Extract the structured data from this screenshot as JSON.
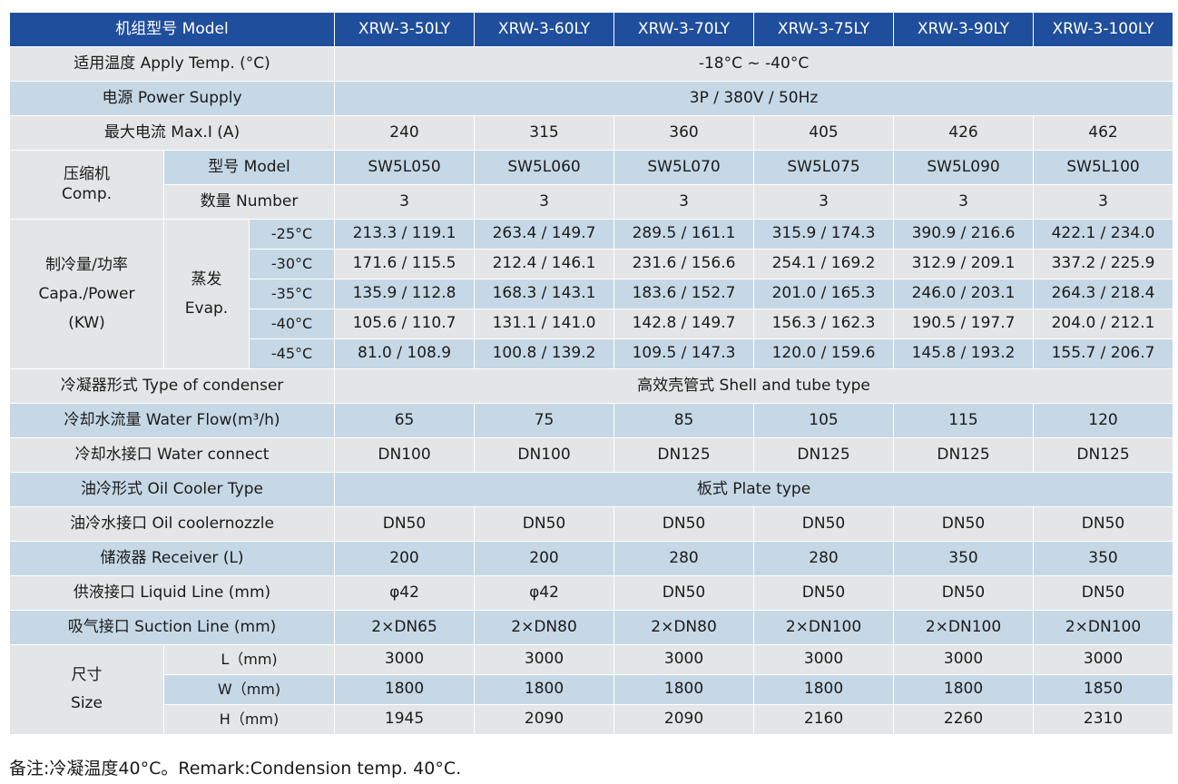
{
  "header": {
    "label": "机组型号 Model",
    "models": [
      "XRW-3-50LY",
      "XRW-3-60LY",
      "XRW-3-70LY",
      "XRW-3-75LY",
      "XRW-3-90LY",
      "XRW-3-100LY"
    ]
  },
  "apply_temp": {
    "label": "适用温度 Apply Temp. (°C)",
    "value": "-18°C ~ -40°C"
  },
  "power_supply": {
    "label": "电源 Power Supply",
    "value": "3P / 380V / 50Hz"
  },
  "max_current": {
    "label": "最大电流 Max.I (A)",
    "values": [
      "240",
      "315",
      "360",
      "405",
      "426",
      "462"
    ]
  },
  "compressor": {
    "label_cn": "压缩机",
    "label_en": "Comp.",
    "model_label": "型号 Model",
    "models": [
      "SW5L050",
      "SW5L060",
      "SW5L070",
      "SW5L075",
      "SW5L090",
      "SW5L100"
    ],
    "number_label": "数量 Number",
    "numbers": [
      "3",
      "3",
      "3",
      "3",
      "3",
      "3"
    ]
  },
  "capacity": {
    "label_line1": "制冷量/功率",
    "label_line2": "Capa./Power",
    "label_line3": "(KW)",
    "evap_cn": "蒸发",
    "evap_en": "Evap.",
    "rows": [
      {
        "temp": "-25°C",
        "values": [
          "213.3 / 119.1",
          "263.4 / 149.7",
          "289.5 / 161.1",
          "315.9 / 174.3",
          "390.9 / 216.6",
          "422.1 / 234.0"
        ]
      },
      {
        "temp": "-30°C",
        "values": [
          "171.6 / 115.5",
          "212.4 / 146.1",
          "231.6 / 156.6",
          "254.1 / 169.2",
          "312.9 / 209.1",
          "337.2 / 225.9"
        ]
      },
      {
        "temp": "-35°C",
        "values": [
          "135.9 / 112.8",
          "168.3 / 143.1",
          "183.6 / 152.7",
          "201.0 / 165.3",
          "246.0 / 203.1",
          "264.3 / 218.4"
        ]
      },
      {
        "temp": "-40°C",
        "values": [
          "105.6 / 110.7",
          "131.1 / 141.0",
          "142.8 / 149.7",
          "156.3 / 162.3",
          "190.5 / 197.7",
          "204.0 / 212.1"
        ]
      },
      {
        "temp": "-45°C",
        "values": [
          "81.0 / 108.9",
          "100.8 / 139.2",
          "109.5 / 147.3",
          "120.0 / 159.6",
          "145.8 / 193.2",
          "155.7 / 206.7"
        ]
      }
    ]
  },
  "condenser": {
    "label": "冷凝器形式 Type of condenser",
    "value": "高效壳管式 Shell and tube type"
  },
  "water_flow": {
    "label": "冷却水流量 Water Flow(m³/h)",
    "values": [
      "65",
      "75",
      "85",
      "105",
      "115",
      "120"
    ]
  },
  "water_connect": {
    "label": "冷却水接口 Water connect",
    "values": [
      "DN100",
      "DN100",
      "DN125",
      "DN125",
      "DN125",
      "DN125"
    ]
  },
  "oil_cooler_type": {
    "label": "油冷形式 Oil Cooler Type",
    "value": "板式 Plate type"
  },
  "oil_nozzle": {
    "label": "油冷水接口 Oil coolernozzle",
    "values": [
      "DN50",
      "DN50",
      "DN50",
      "DN50",
      "DN50",
      "DN50"
    ]
  },
  "receiver": {
    "label": "储液器 Receiver (L)",
    "values": [
      "200",
      "200",
      "280",
      "280",
      "350",
      "350"
    ]
  },
  "liquid_line": {
    "label": "供液接口 Liquid Line (mm)",
    "values": [
      "φ42",
      "φ42",
      "DN50",
      "DN50",
      "DN50",
      "DN50"
    ]
  },
  "suction_line": {
    "label": "吸气接口 Suction Line (mm)",
    "values": [
      "2×DN65",
      "2×DN80",
      "2×DN80",
      "2×DN100",
      "2×DN100",
      "2×DN100"
    ]
  },
  "size": {
    "label_cn": "尺寸",
    "label_en": "Size",
    "rows": [
      {
        "label": "L（mm)",
        "values": [
          "3000",
          "3000",
          "3000",
          "3000",
          "3000",
          "3000"
        ]
      },
      {
        "label": "W（mm)",
        "values": [
          "1800",
          "1800",
          "1800",
          "1800",
          "1800",
          "1850"
        ]
      },
      {
        "label": "H（mm)",
        "values": [
          "1945",
          "2090",
          "2090",
          "2160",
          "2260",
          "2310"
        ]
      }
    ]
  },
  "remark": "备注:冷凝温度40°C。Remark:Condension temp. 40°C."
}
